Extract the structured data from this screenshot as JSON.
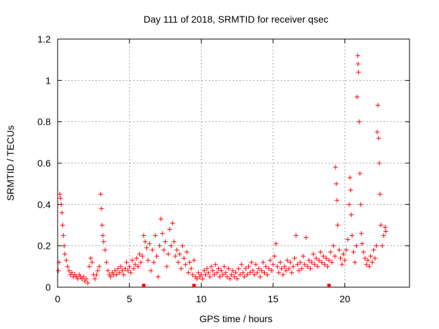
{
  "chart_data": {
    "type": "scatter",
    "title": "Day 111 of 2018, SRMTID for receiver qsec",
    "xlabel": "GPS time / hours",
    "ylabel": "SRMTID / TECUs",
    "xlim": [
      0,
      24.5
    ],
    "ylim": [
      0,
      1.2
    ],
    "x_ticks": [
      0,
      5,
      10,
      15,
      20
    ],
    "x_tick_labels": [
      "0",
      "5",
      "10",
      "15",
      "20"
    ],
    "y_ticks": [
      0,
      0.2,
      0.4,
      0.6,
      0.8,
      1.0,
      1.2
    ],
    "y_tick_labels": [
      "0",
      "0.2",
      "0.4",
      "0.6",
      "0.8",
      "1",
      "1.2"
    ],
    "grid": true,
    "marker": "+",
    "color": "#ff0000",
    "series": [
      {
        "name": "SRMTID",
        "points": [
          [
            0.05,
            0.08
          ],
          [
            0.1,
            0.12
          ],
          [
            0.15,
            0.45
          ],
          [
            0.2,
            0.43
          ],
          [
            0.25,
            0.4
          ],
          [
            0.3,
            0.36
          ],
          [
            0.35,
            0.3
          ],
          [
            0.4,
            0.25
          ],
          [
            0.45,
            0.2
          ],
          [
            0.5,
            0.16
          ],
          [
            0.6,
            0.13
          ],
          [
            0.7,
            0.1
          ],
          [
            0.8,
            0.08
          ],
          [
            0.9,
            0.06
          ],
          [
            1.0,
            0.07
          ],
          [
            1.1,
            0.05
          ],
          [
            1.2,
            0.06
          ],
          [
            1.3,
            0.05
          ],
          [
            1.4,
            0.04
          ],
          [
            1.5,
            0.06
          ],
          [
            1.6,
            0.05
          ],
          [
            1.7,
            0.04
          ],
          [
            1.8,
            0.05
          ],
          [
            1.9,
            0.03
          ],
          [
            2.0,
            0.04
          ],
          [
            2.1,
            0.02
          ],
          [
            2.2,
            0.1
          ],
          [
            2.3,
            0.14
          ],
          [
            2.4,
            0.12
          ],
          [
            2.5,
            0.06
          ],
          [
            2.6,
            0.04
          ],
          [
            2.7,
            0.06
          ],
          [
            2.8,
            0.08
          ],
          [
            2.9,
            0.1
          ],
          [
            3.0,
            0.45
          ],
          [
            3.05,
            0.38
          ],
          [
            3.1,
            0.3
          ],
          [
            3.15,
            0.25
          ],
          [
            3.2,
            0.22
          ],
          [
            3.3,
            0.18
          ],
          [
            3.4,
            0.12
          ],
          [
            3.5,
            0.08
          ],
          [
            3.6,
            0.06
          ],
          [
            3.7,
            0.05
          ],
          [
            3.8,
            0.07
          ],
          [
            3.9,
            0.06
          ],
          [
            4.0,
            0.08
          ],
          [
            4.1,
            0.06
          ],
          [
            4.2,
            0.09
          ],
          [
            4.3,
            0.07
          ],
          [
            4.4,
            0.1
          ],
          [
            4.5,
            0.08
          ],
          [
            4.6,
            0.06
          ],
          [
            4.7,
            0.09
          ],
          [
            4.8,
            0.12
          ],
          [
            4.9,
            0.08
          ],
          [
            5.0,
            0.1
          ],
          [
            5.1,
            0.07
          ],
          [
            5.2,
            0.13
          ],
          [
            5.3,
            0.09
          ],
          [
            5.4,
            0.11
          ],
          [
            5.5,
            0.14
          ],
          [
            5.6,
            0.1
          ],
          [
            5.7,
            0.16
          ],
          [
            5.8,
            0.12
          ],
          [
            5.9,
            0.15
          ],
          [
            6.0,
            0.25
          ],
          [
            6.1,
            0.22
          ],
          [
            6.2,
            0.19
          ],
          [
            6.3,
            0.13
          ],
          [
            6.4,
            0.21
          ],
          [
            6.5,
            0.08
          ],
          [
            6.6,
            0.18
          ],
          [
            6.7,
            0.12
          ],
          [
            6.8,
            0.25
          ],
          [
            6.9,
            0.15
          ],
          [
            7.0,
            0.05
          ],
          [
            7.1,
            0.2
          ],
          [
            7.2,
            0.33
          ],
          [
            7.3,
            0.26
          ],
          [
            7.4,
            0.18
          ],
          [
            7.5,
            0.22
          ],
          [
            7.6,
            0.1
          ],
          [
            7.7,
            0.16
          ],
          [
            7.8,
            0.28
          ],
          [
            7.9,
            0.2
          ],
          [
            8.0,
            0.31
          ],
          [
            8.1,
            0.22
          ],
          [
            8.2,
            0.15
          ],
          [
            8.3,
            0.18
          ],
          [
            8.4,
            0.12
          ],
          [
            8.5,
            0.16
          ],
          [
            8.6,
            0.09
          ],
          [
            8.7,
            0.2
          ],
          [
            8.8,
            0.14
          ],
          [
            8.9,
            0.11
          ],
          [
            9.0,
            0.17
          ],
          [
            9.1,
            0.07
          ],
          [
            9.2,
            0.12
          ],
          [
            9.3,
            0.09
          ],
          [
            9.4,
            0.06
          ],
          [
            9.5,
            0.13
          ],
          [
            9.6,
            0.05
          ],
          [
            9.7,
            0.04
          ],
          [
            9.8,
            0.07
          ],
          [
            9.9,
            0.05
          ],
          [
            10.0,
            0.06
          ],
          [
            10.1,
            0.04
          ],
          [
            10.2,
            0.08
          ],
          [
            10.3,
            0.06
          ],
          [
            10.4,
            0.09
          ],
          [
            10.5,
            0.07
          ],
          [
            10.6,
            0.05
          ],
          [
            10.7,
            0.1
          ],
          [
            10.8,
            0.08
          ],
          [
            10.9,
            0.06
          ],
          [
            11.0,
            0.11
          ],
          [
            11.1,
            0.07
          ],
          [
            11.2,
            0.09
          ],
          [
            11.3,
            0.05
          ],
          [
            11.4,
            0.08
          ],
          [
            11.5,
            0.06
          ],
          [
            11.6,
            0.1
          ],
          [
            11.7,
            0.07
          ],
          [
            11.8,
            0.05
          ],
          [
            11.9,
            0.09
          ],
          [
            12.0,
            0.04
          ],
          [
            12.1,
            0.06
          ],
          [
            12.2,
            0.08
          ],
          [
            12.3,
            0.05
          ],
          [
            12.4,
            0.07
          ],
          [
            12.5,
            0.04
          ],
          [
            12.6,
            0.09
          ],
          [
            12.7,
            0.06
          ],
          [
            12.8,
            0.11
          ],
          [
            12.9,
            0.07
          ],
          [
            13.0,
            0.05
          ],
          [
            13.1,
            0.09
          ],
          [
            13.2,
            0.06
          ],
          [
            13.3,
            0.1
          ],
          [
            13.4,
            0.07
          ],
          [
            13.5,
            0.12
          ],
          [
            13.6,
            0.08
          ],
          [
            13.7,
            0.06
          ],
          [
            13.8,
            0.11
          ],
          [
            13.9,
            0.07
          ],
          [
            14.0,
            0.09
          ],
          [
            14.1,
            0.05
          ],
          [
            14.2,
            0.08
          ],
          [
            14.3,
            0.12
          ],
          [
            14.4,
            0.07
          ],
          [
            14.5,
            0.1
          ],
          [
            14.6,
            0.06
          ],
          [
            14.7,
            0.09
          ],
          [
            14.8,
            0.13
          ],
          [
            14.9,
            0.08
          ],
          [
            15.0,
            0.11
          ],
          [
            15.1,
            0.15
          ],
          [
            15.2,
            0.21
          ],
          [
            15.3,
            0.1
          ],
          [
            15.4,
            0.07
          ],
          [
            15.5,
            0.12
          ],
          [
            15.6,
            0.09
          ],
          [
            15.7,
            0.06
          ],
          [
            15.8,
            0.1
          ],
          [
            15.9,
            0.08
          ],
          [
            16.0,
            0.13
          ],
          [
            16.1,
            0.09
          ],
          [
            16.2,
            0.12
          ],
          [
            16.3,
            0.07
          ],
          [
            16.4,
            0.1
          ],
          [
            16.5,
            0.14
          ],
          [
            16.6,
            0.25
          ],
          [
            16.7,
            0.11
          ],
          [
            16.8,
            0.08
          ],
          [
            16.9,
            0.12
          ],
          [
            17.0,
            0.09
          ],
          [
            17.1,
            0.15
          ],
          [
            17.2,
            0.11
          ],
          [
            17.3,
            0.24
          ],
          [
            17.4,
            0.1
          ],
          [
            17.5,
            0.13
          ],
          [
            17.6,
            0.09
          ],
          [
            17.7,
            0.12
          ],
          [
            17.8,
            0.16
          ],
          [
            17.9,
            0.11
          ],
          [
            18.0,
            0.14
          ],
          [
            18.1,
            0.1
          ],
          [
            18.2,
            0.13
          ],
          [
            18.3,
            0.17
          ],
          [
            18.4,
            0.12
          ],
          [
            18.5,
            0.15
          ],
          [
            18.6,
            0.11
          ],
          [
            18.7,
            0.14
          ],
          [
            18.8,
            0.1
          ],
          [
            18.9,
            0.13
          ],
          [
            19.0,
            0.17
          ],
          [
            19.1,
            0.12
          ],
          [
            19.2,
            0.2
          ],
          [
            19.3,
            0.15
          ],
          [
            19.35,
            0.58
          ],
          [
            19.4,
            0.5
          ],
          [
            19.45,
            0.42
          ],
          [
            19.5,
            0.3
          ],
          [
            19.6,
            0.18
          ],
          [
            19.7,
            0.14
          ],
          [
            19.8,
            0.11
          ],
          [
            19.9,
            0.16
          ],
          [
            20.0,
            0.13
          ],
          [
            20.1,
            0.18
          ],
          [
            20.2,
            0.23
          ],
          [
            20.3,
            0.4
          ],
          [
            20.35,
            0.53
          ],
          [
            20.4,
            0.47
          ],
          [
            20.45,
            0.35
          ],
          [
            20.5,
            0.25
          ],
          [
            20.6,
            0.17
          ],
          [
            20.7,
            0.12
          ],
          [
            20.8,
            0.2
          ],
          [
            20.85,
            0.92
          ],
          [
            20.9,
            1.12
          ],
          [
            20.92,
            1.08
          ],
          [
            20.95,
            1.04
          ],
          [
            21.0,
            0.8
          ],
          [
            21.05,
            0.55
          ],
          [
            21.1,
            0.4
          ],
          [
            21.15,
            0.26
          ],
          [
            21.2,
            0.21
          ],
          [
            21.3,
            0.17
          ],
          [
            21.4,
            0.14
          ],
          [
            21.5,
            0.11
          ],
          [
            21.6,
            0.13
          ],
          [
            21.7,
            0.1
          ],
          [
            21.8,
            0.15
          ],
          [
            21.9,
            0.12
          ],
          [
            22.0,
            0.18
          ],
          [
            22.1,
            0.14
          ],
          [
            22.2,
            0.2
          ],
          [
            22.25,
            0.75
          ],
          [
            22.3,
            0.88
          ],
          [
            22.35,
            0.72
          ],
          [
            22.4,
            0.6
          ],
          [
            22.45,
            0.45
          ],
          [
            22.5,
            0.3
          ],
          [
            22.6,
            0.2
          ],
          [
            22.7,
            0.25
          ],
          [
            22.8,
            0.29
          ],
          [
            22.85,
            0.27
          ]
        ]
      }
    ],
    "bottom_markers_x": [
      6.0,
      9.5,
      18.9
    ]
  }
}
